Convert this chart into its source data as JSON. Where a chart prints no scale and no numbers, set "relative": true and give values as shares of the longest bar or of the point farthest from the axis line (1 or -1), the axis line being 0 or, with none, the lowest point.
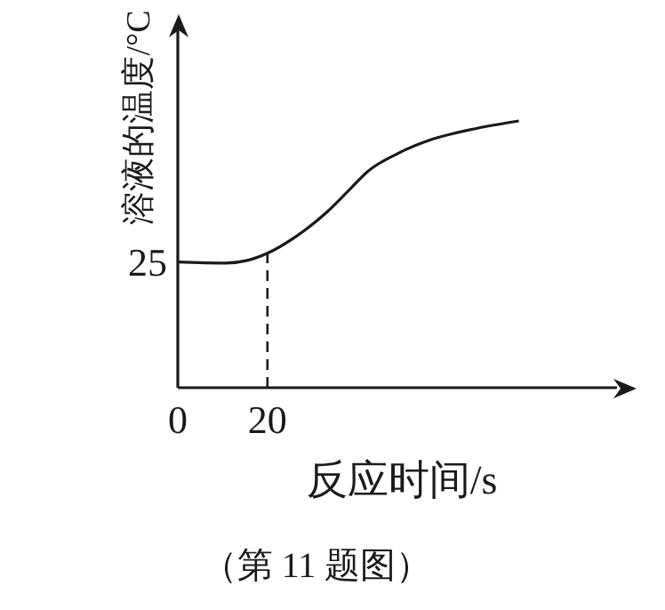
{
  "chart_data": {
    "type": "line",
    "xlabel": "反应时间/s",
    "ylabel": "溶液的温度/°C",
    "relative": true,
    "xlim": [
      0,
      98
    ],
    "xticks": [
      0,
      20
    ],
    "x": [
      0,
      10.4,
      15.7,
      20,
      26.4,
      33.1,
      38.4,
      42.4,
      49.1,
      57.1,
      66.4,
      76.1
    ],
    "series": [
      {
        "color": "#1a1a1a",
        "values": [
          0.471,
          0.467,
          0.478,
          0.504,
          0.567,
          0.656,
          0.744,
          0.811,
          0.878,
          0.933,
          0.971,
          1.0
        ]
      }
    ],
    "ref_lines": [
      {
        "axis": "x",
        "value": 20,
        "line_style": "dashed",
        "color": "#1a1a1a"
      }
    ],
    "annotations": [
      {
        "text": "25",
        "x": 0,
        "y": 0.471
      },
      "（第 11 题图）"
    ],
    "grid": false,
    "legend": false,
    "marker": "none",
    "line_style": "solid"
  }
}
